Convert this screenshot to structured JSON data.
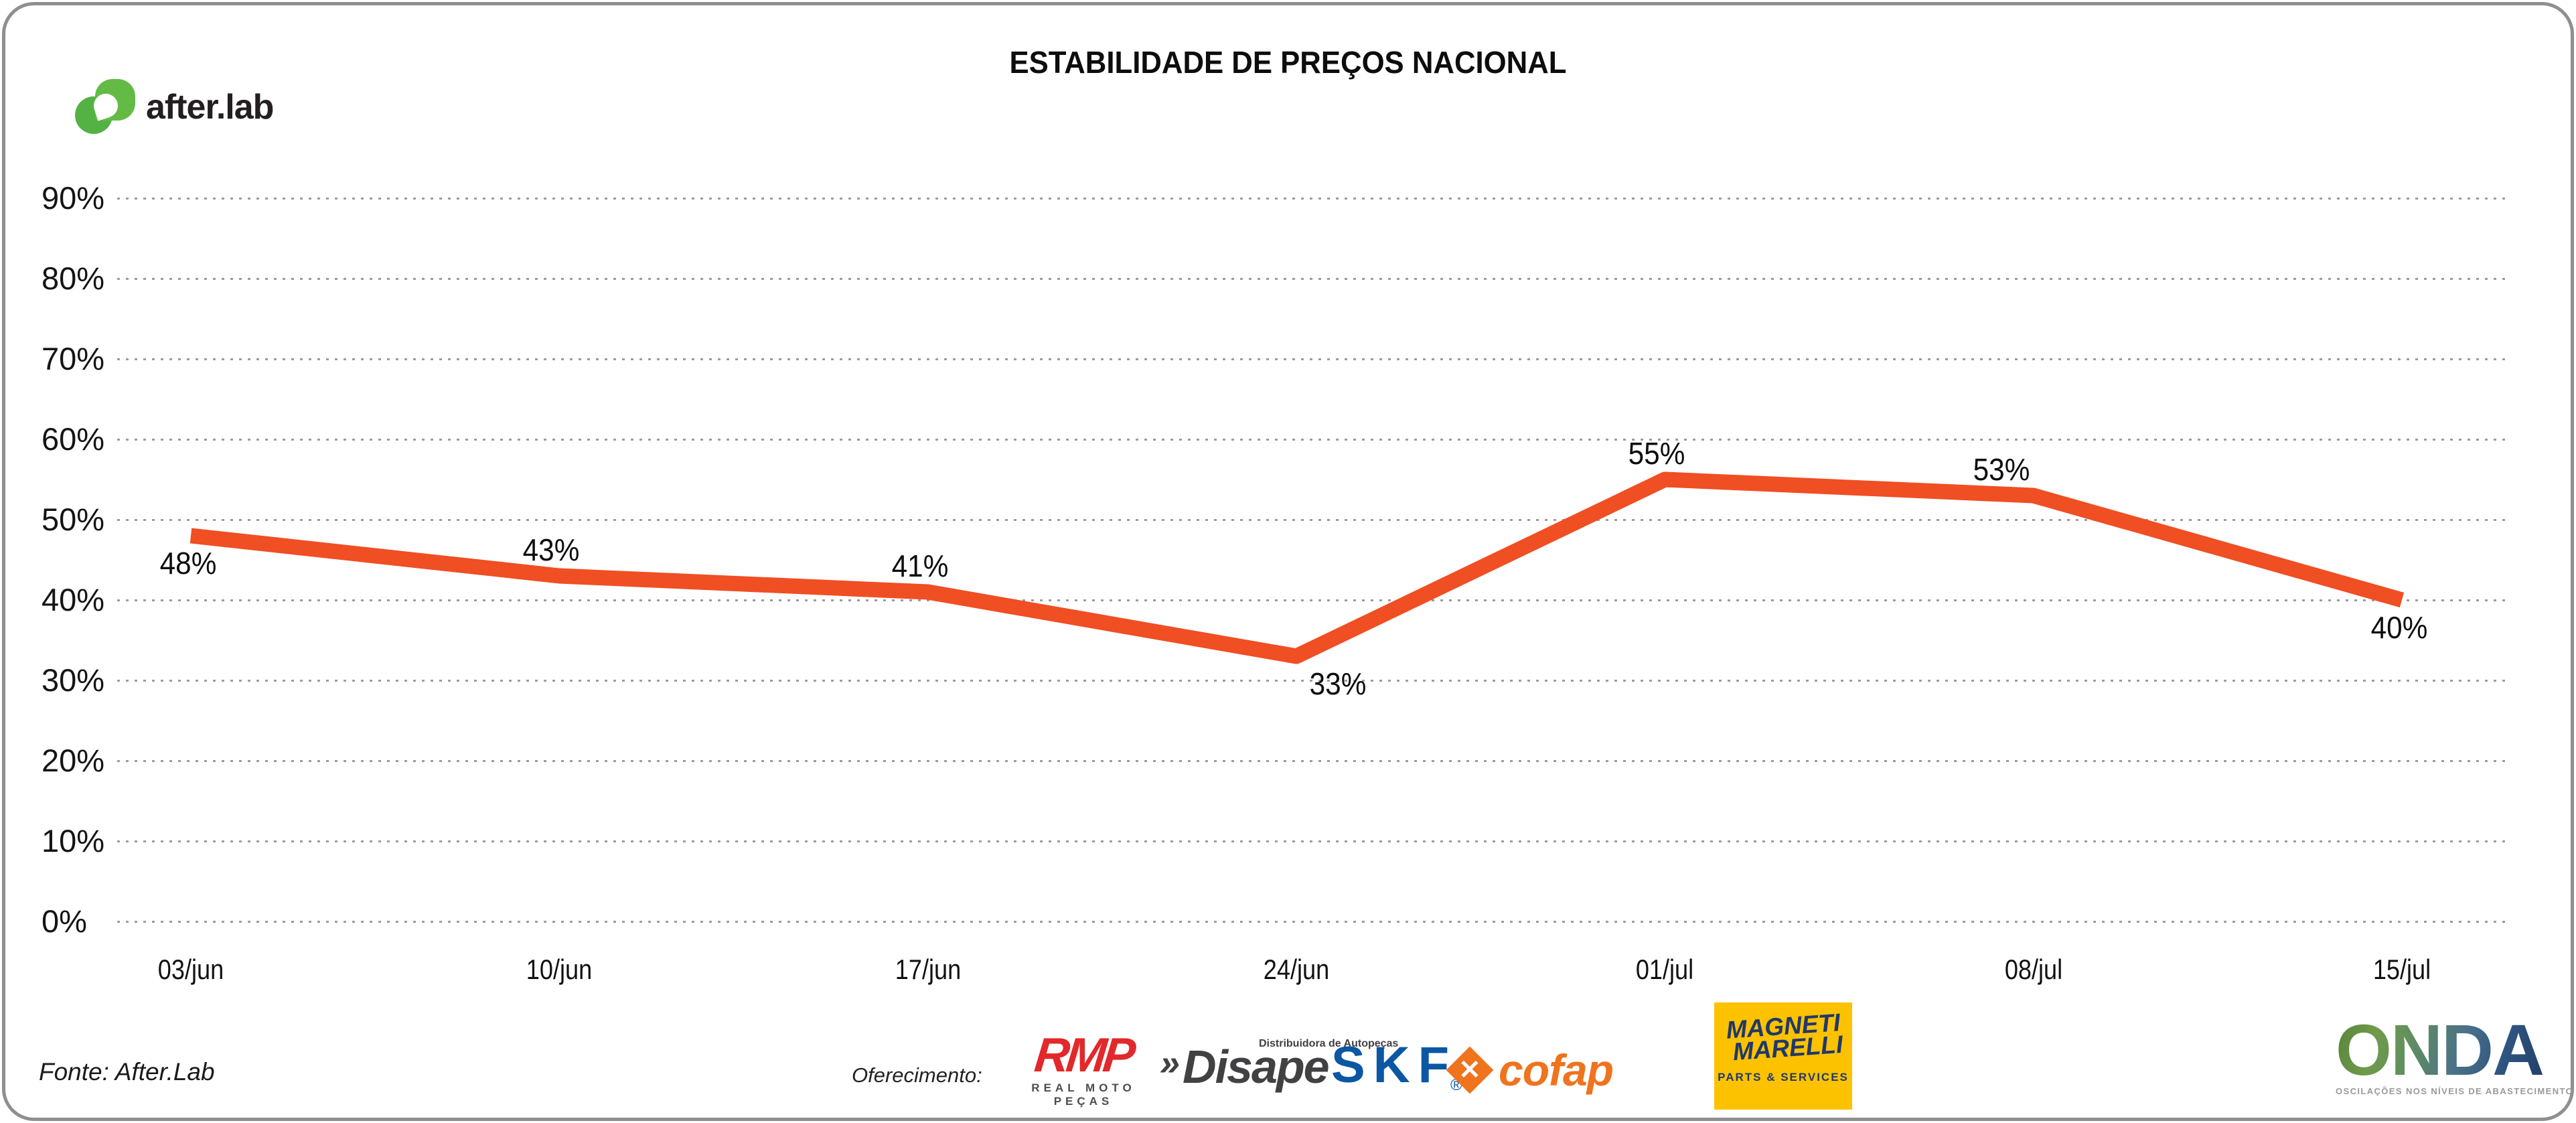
{
  "title": "ESTABILIDADE DE PREÇOS NACIONAL",
  "brand": {
    "logo_text": "after.lab"
  },
  "chart_data": {
    "type": "line",
    "title": "ESTABILIDADE DE PREÇOS NACIONAL",
    "x": [
      "03/jun",
      "10/jun",
      "17/jun",
      "24/jun",
      "01/jul",
      "08/jul",
      "15/jul"
    ],
    "values": [
      48,
      43,
      41,
      33,
      55,
      53,
      40
    ],
    "point_labels": [
      "48%",
      "43%",
      "41%",
      "33%",
      "55%",
      "53%",
      "40%"
    ],
    "label_placement": [
      "below",
      "above",
      "above",
      "below-right",
      "above",
      "above-left",
      "below"
    ],
    "y_ticks": [
      "90%",
      "80%",
      "70%",
      "60%",
      "50%",
      "40%",
      "30%",
      "20%",
      "10%",
      "0%"
    ],
    "ylim": [
      0,
      90
    ],
    "xlabel": "",
    "ylabel": "",
    "grid": "horizontal-dotted",
    "legend": "none",
    "line_color": "#F04E23"
  },
  "footer": {
    "source": "Fonte: After.Lab",
    "sponsor_label": "Oferecimento:",
    "rmp": {
      "text": "RMP",
      "sub": "REAL MOTO PEÇAS"
    },
    "disape": {
      "chevrons": "»",
      "text": "Disape",
      "sub": "Distribuidora de Autopeças"
    },
    "skf": {
      "text": "SKF",
      "reg": "®"
    },
    "cofap": {
      "icon_glyph": "✕",
      "text": "cofap"
    },
    "magneti": {
      "line1": "MAGNETI",
      "line2": "MARELLI",
      "sub": "PARTS & SERVICES"
    },
    "onda": {
      "text": "ONDA",
      "tagline": "OSCILAÇÕES NOS NÍVEIS DE ABASTECIMENTO E PREÇO"
    }
  },
  "colors": {
    "line": "#F04E23",
    "grid_dots": "#9c9c9c",
    "frame_border": "#8f8f8f",
    "brand_green": "#63bb46",
    "rmp_red": "#e2282a",
    "disape_gray": "#414042",
    "skf_blue": "#0b57a4",
    "cofap_orange": "#f0731d",
    "magneti_yellow": "#fcc200",
    "magneti_navy": "#20386b"
  }
}
